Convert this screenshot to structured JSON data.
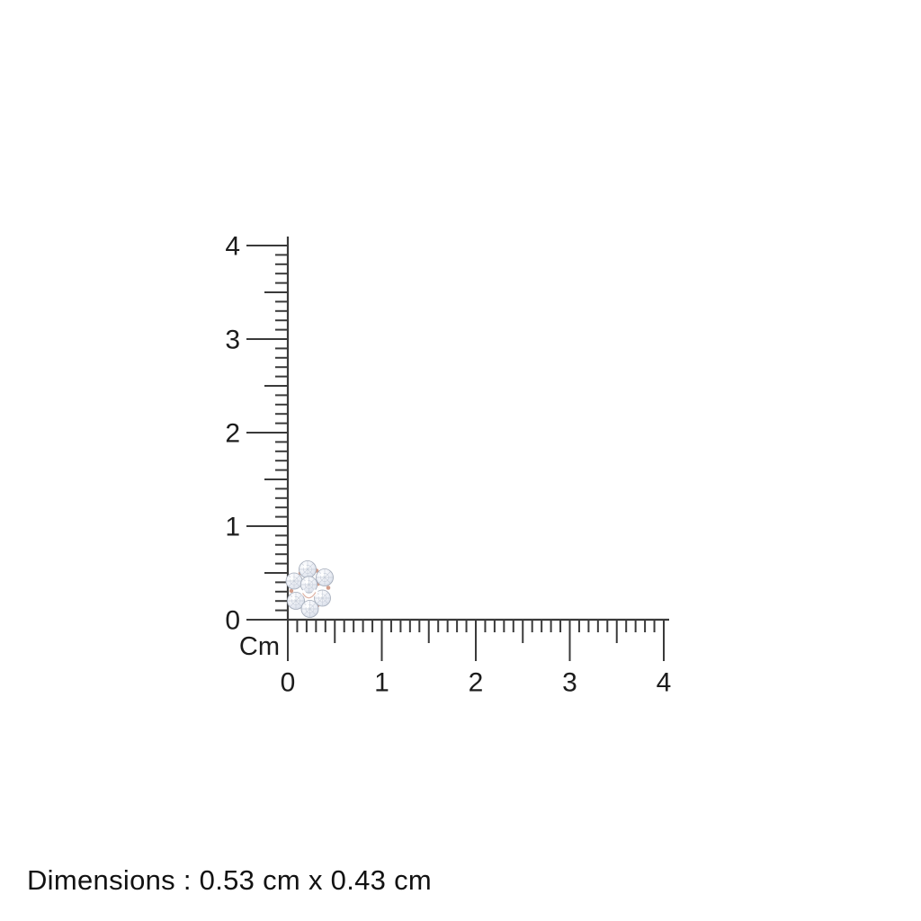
{
  "page": {
    "background_color": "#ffffff"
  },
  "ruler": {
    "unit_label": "Cm",
    "line_color": "#3a3a3a",
    "text_color": "#1c1c1c",
    "vertical_axis": {
      "min": 0,
      "max": 4,
      "major_step": 1,
      "half_step": 0.5,
      "minor_step": 0.1,
      "tick_labels": [
        "0",
        "1",
        "2",
        "3",
        "4"
      ],
      "label_side": "left",
      "tick_direction": "left"
    },
    "horizontal_axis": {
      "min": 0,
      "max": 4,
      "major_step": 1,
      "half_step": 0.5,
      "minor_step": 0.1,
      "tick_labels": [
        "0",
        "1",
        "2",
        "3",
        "4"
      ],
      "label_side": "bottom",
      "tick_direction": "down"
    }
  },
  "product": {
    "icon": "diamond-cluster-pendant-icon",
    "diamond_color": "#e9ecf3",
    "metal_color": "#d39e8c"
  },
  "footer": {
    "dimensions_text": "Dimensions : 0.53 cm x 0.43 cm",
    "width_cm": "0.53",
    "height_cm": "0.43",
    "unit": "cm"
  }
}
